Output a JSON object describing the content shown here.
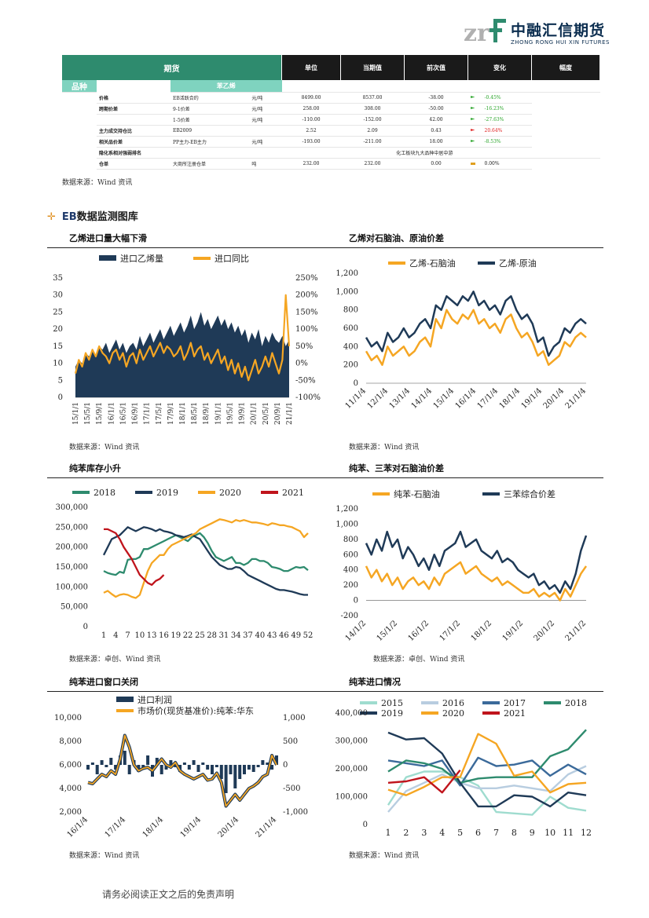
{
  "logo": {
    "mark": "zrf",
    "name": "中融汇信期货",
    "english": "ZHONG RONG HUI XIN FUTURES"
  },
  "table": {
    "headers": {
      "futures": "期货",
      "unit": "单位",
      "current": "当期值",
      "previous": "前次值",
      "change": "变化",
      "pct": "幅度"
    },
    "subheader": "苯乙烯",
    "category": "品种",
    "rows": [
      {
        "label": "价格",
        "item": "EB活跃合约",
        "unit": "元/吨",
        "current": "8499.00",
        "previous": "8537.00",
        "change": "-38.00",
        "flag": "g",
        "pct": "-0.45%",
        "dir": "up"
      },
      {
        "label": "跨期价差",
        "item": "9-1价差",
        "unit": "元/吨",
        "current": "258.00",
        "previous": "308.00",
        "change": "-50.00",
        "flag": "g",
        "pct": "-16.23%",
        "dir": "up"
      },
      {
        "label": "",
        "item": "1-5价差",
        "unit": "元/吨",
        "current": "-110.00",
        "previous": "-152.00",
        "change": "42.00",
        "flag": "g",
        "pct": "-27.63%",
        "dir": "up"
      },
      {
        "label": "主力成交持仓比",
        "item": "EB2009",
        "unit": "",
        "current": "2.52",
        "previous": "2.09",
        "change": "0.43",
        "flag": "r",
        "pct": "20.64%",
        "dir": "down"
      },
      {
        "label": "相关品价差",
        "item": "PP主力-EB主力",
        "unit": "元/吨",
        "current": "-193.00",
        "previous": "-211.00",
        "change": "18.00",
        "flag": "g",
        "pct": "-8.53%",
        "dir": "up"
      },
      {
        "label": "隐化系相对强弱排名",
        "item": "",
        "unit": "",
        "merged": "化工板块九大品种中居中游"
      },
      {
        "label": "仓单",
        "item": "大商所注册仓单",
        "unit": "吨",
        "current": "232.00",
        "previous": "232.00",
        "change": "0.00",
        "flag": "y",
        "pct": "0.00%",
        "dir": "flat"
      }
    ]
  },
  "source_wind": "数据来源：Wind 资讯",
  "source_zhuochuang": "数据来源：卓创、Wind 资讯",
  "section": {
    "prefix": "EB",
    "title": "数据监测图库"
  },
  "footer": "请务必阅读正文之后的免责声明",
  "colors": {
    "navy": "#1f3a57",
    "orange": "#f5a623",
    "green": "#2e8b6e",
    "red": "#c0141c",
    "teal_light": "#7fd3bf"
  },
  "chart_data": [
    {
      "id": "c1",
      "title": "乙烯进口量大幅下滑",
      "type": "area",
      "series": [
        {
          "name": "进口乙烯量",
          "color": "#1f3a57"
        },
        {
          "name": "进口同比",
          "color": "#f5a623"
        }
      ],
      "y_left": {
        "min": 0,
        "max": 35,
        "ticks": [
          "0",
          "5",
          "10",
          "15",
          "20",
          "25",
          "30",
          "35"
        ]
      },
      "y_right": {
        "min": -100,
        "max": 250,
        "ticks": [
          "-100%",
          "-50%",
          "0%",
          "50%",
          "100%",
          "150%",
          "200%",
          "250%"
        ]
      },
      "x_ticks": [
        "15/1/1",
        "15/5/1",
        "15/9/1",
        "16/1/1",
        "16/5/1",
        "16/9/1",
        "17/1/1",
        "17/5/1",
        "17/9/1",
        "18/1/1",
        "18/5/1",
        "18/9/1",
        "19/1/1",
        "19/5/1",
        "19/9/1",
        "20/1/1",
        "20/5/1",
        "20/9/1",
        "21/1/1"
      ],
      "import_volume": [
        9,
        11,
        10,
        13,
        12,
        14,
        12,
        15,
        14,
        16,
        13,
        15,
        17,
        14,
        16,
        13,
        15,
        16,
        14,
        18,
        15,
        17,
        19,
        16,
        18,
        20,
        17,
        19,
        21,
        18,
        20,
        22,
        19,
        21,
        24,
        20,
        22,
        25,
        21,
        23,
        20,
        22,
        24,
        21,
        23,
        20,
        22,
        19,
        21,
        18,
        20,
        16,
        19,
        17,
        20,
        15,
        18,
        16,
        19,
        17,
        16,
        18,
        15,
        17
      ],
      "yoy_pct": [
        -30,
        10,
        -10,
        30,
        10,
        40,
        20,
        50,
        30,
        20,
        0,
        30,
        40,
        10,
        30,
        -10,
        20,
        30,
        0,
        40,
        10,
        30,
        50,
        20,
        40,
        60,
        30,
        50,
        40,
        20,
        30,
        50,
        10,
        30,
        60,
        20,
        40,
        50,
        10,
        30,
        0,
        20,
        40,
        0,
        20,
        -20,
        10,
        -30,
        0,
        -40,
        -10,
        -50,
        -20,
        10,
        -30,
        -10,
        20,
        -10,
        30,
        0,
        -30,
        10,
        200,
        50
      ]
    },
    {
      "id": "c2",
      "title": "乙烯对石脑油、原油价差",
      "type": "line",
      "series": [
        {
          "name": "乙烯-石脑油",
          "color": "#f5a623"
        },
        {
          "name": "乙烯-原油",
          "color": "#1f3a57"
        }
      ],
      "y": {
        "min": 0,
        "max": 1200,
        "ticks": [
          "0",
          "200",
          "400",
          "600",
          "800",
          "1,000",
          "1,200"
        ]
      },
      "x_ticks": [
        "11/1/4",
        "12/1/4",
        "13/1/4",
        "14/1/4",
        "15/1/4",
        "16/1/4",
        "17/1/4",
        "18/1/4",
        "19/1/4",
        "20/1/4",
        "21/1/4"
      ],
      "naphtha": [
        350,
        250,
        300,
        200,
        400,
        300,
        350,
        400,
        300,
        350,
        450,
        500,
        400,
        700,
        600,
        800,
        700,
        650,
        750,
        700,
        800,
        650,
        700,
        600,
        650,
        550,
        700,
        750,
        600,
        500,
        550,
        450,
        300,
        350,
        200,
        250,
        300,
        450,
        400,
        500,
        550,
        500
      ],
      "crude": [
        500,
        400,
        450,
        350,
        550,
        450,
        500,
        600,
        500,
        550,
        650,
        700,
        600,
        850,
        800,
        950,
        900,
        850,
        950,
        900,
        1000,
        850,
        900,
        800,
        850,
        750,
        900,
        950,
        800,
        700,
        750,
        650,
        450,
        500,
        300,
        400,
        450,
        600,
        550,
        650,
        700,
        650
      ]
    },
    {
      "id": "c3",
      "title": "纯苯库存小升",
      "type": "line",
      "series": [
        {
          "name": "2018",
          "color": "#2e8b6e"
        },
        {
          "name": "2019",
          "color": "#1f3a57"
        },
        {
          "name": "2020",
          "color": "#f5a623"
        },
        {
          "name": "2021",
          "color": "#c0141c"
        }
      ],
      "y": {
        "min": 0,
        "max": 300000,
        "ticks": [
          "0",
          "50,000",
          "100,000",
          "150,000",
          "200,000",
          "250,000",
          "300,000"
        ]
      },
      "x_ticks": [
        "1",
        "4",
        "7",
        "10",
        "13",
        "16",
        "19",
        "22",
        "25",
        "28",
        "31",
        "34",
        "37",
        "40",
        "43",
        "46",
        "49",
        "52"
      ],
      "s2018": [
        140000,
        135000,
        132000,
        130000,
        138000,
        135000,
        168000,
        170000,
        170000,
        175000,
        195000,
        195000,
        200000,
        205000,
        210000,
        215000,
        220000,
        225000,
        230000,
        225000,
        220000,
        215000,
        225000,
        230000,
        235000,
        225000,
        210000,
        190000,
        175000,
        170000,
        165000,
        170000,
        175000,
        160000,
        160000,
        155000,
        160000,
        170000,
        170000,
        165000,
        165000,
        160000,
        150000,
        148000,
        145000,
        140000,
        140000,
        145000,
        150000,
        148000,
        150000,
        142000
      ],
      "s2019": [
        180000,
        200000,
        220000,
        225000,
        230000,
        240000,
        250000,
        245000,
        240000,
        245000,
        250000,
        248000,
        245000,
        240000,
        245000,
        240000,
        238000,
        235000,
        230000,
        228000,
        225000,
        228000,
        232000,
        225000,
        220000,
        205000,
        190000,
        175000,
        165000,
        155000,
        150000,
        145000,
        145000,
        150000,
        148000,
        140000,
        130000,
        125000,
        120000,
        115000,
        110000,
        105000,
        100000,
        95000,
        92000,
        92000,
        90000,
        88000,
        85000,
        82000,
        80000,
        80000
      ],
      "s2020": [
        85000,
        90000,
        82000,
        75000,
        80000,
        82000,
        80000,
        75000,
        72000,
        80000,
        110000,
        140000,
        160000,
        170000,
        180000,
        180000,
        195000,
        205000,
        210000,
        215000,
        220000,
        225000,
        230000,
        235000,
        245000,
        250000,
        255000,
        260000,
        265000,
        270000,
        268000,
        265000,
        262000,
        268000,
        265000,
        268000,
        265000,
        262000,
        262000,
        260000,
        258000,
        255000,
        260000,
        258000,
        255000,
        255000,
        252000,
        250000,
        245000,
        240000,
        225000,
        235000
      ],
      "s2021": [
        245000,
        245000,
        240000,
        235000,
        220000,
        200000,
        185000,
        170000,
        150000,
        130000,
        120000,
        110000,
        105000,
        115000,
        120000,
        130000
      ]
    },
    {
      "id": "c4",
      "title": "纯苯、三苯对石脑油价差",
      "type": "line",
      "series": [
        {
          "name": "纯苯-石脑油",
          "color": "#f5a623"
        },
        {
          "name": "三苯综合价差",
          "color": "#1f3a57"
        }
      ],
      "y": {
        "min": -200,
        "max": 1200,
        "ticks": [
          "-200",
          "0",
          "200",
          "400",
          "600",
          "800",
          "1,000",
          "1,200"
        ]
      },
      "x_ticks": [
        "14/1/2",
        "15/1/2",
        "16/1/2",
        "17/1/2",
        "18/1/2",
        "19/1/2",
        "20/1/2",
        "21/1/2"
      ],
      "benzene_naphtha": [
        450,
        300,
        400,
        250,
        350,
        200,
        300,
        150,
        250,
        300,
        200,
        250,
        150,
        300,
        200,
        350,
        400,
        450,
        500,
        350,
        400,
        450,
        350,
        300,
        250,
        300,
        200,
        250,
        200,
        150,
        100,
        100,
        150,
        50,
        100,
        50,
        100,
        0,
        150,
        50,
        200,
        350,
        450
      ],
      "three_benzene": [
        750,
        600,
        800,
        650,
        900,
        700,
        800,
        550,
        700,
        600,
        450,
        550,
        400,
        600,
        450,
        650,
        700,
        750,
        900,
        700,
        750,
        800,
        650,
        600,
        550,
        650,
        500,
        550,
        500,
        400,
        350,
        300,
        350,
        200,
        250,
        150,
        200,
        100,
        250,
        150,
        350,
        650,
        850
      ]
    },
    {
      "id": "c5",
      "title": "纯苯进口窗口关闭",
      "type": "bar+line",
      "series": [
        {
          "name": "进口利润",
          "color": "#1f3a57"
        },
        {
          "name": "市场价(现货基准价):纯苯:华东",
          "color": "#f5a623"
        }
      ],
      "y_left": {
        "min": 2000,
        "max": 10000,
        "ticks": [
          "2,000",
          "4,000",
          "6,000",
          "8,000",
          "10,000"
        ]
      },
      "y_right": {
        "min": -1000,
        "max": 1000,
        "ticks": [
          "-1,000",
          "-500",
          "0",
          "500",
          "1,000"
        ]
      },
      "x_ticks": [
        "16/1/4",
        "17/1/4",
        "18/1/4",
        "19/1/4",
        "20/1/4",
        "21/1/4"
      ],
      "price": [
        4500,
        4400,
        4800,
        5200,
        5000,
        5500,
        5200,
        6500,
        8500,
        7500,
        6000,
        5500,
        5700,
        5800,
        5500,
        6000,
        6500,
        6000,
        5800,
        6200,
        5500,
        5200,
        5000,
        4800,
        5000,
        5200,
        4700,
        4800,
        5300,
        4500,
        2500,
        3000,
        3500,
        3000,
        3500,
        4000,
        4200,
        4500,
        5000,
        5200,
        6800,
        6000
      ],
      "profit": [
        -100,
        50,
        -200,
        100,
        -50,
        150,
        -100,
        200,
        300,
        -200,
        100,
        -150,
        -100,
        200,
        -250,
        150,
        -200,
        -100,
        100,
        -50,
        -150,
        50,
        -100,
        100,
        -150,
        50,
        -100,
        -200,
        -50,
        -300,
        -600,
        -200,
        -500,
        -300,
        -200,
        -100,
        -150,
        -50,
        100,
        50,
        -100,
        200
      ]
    },
    {
      "id": "c6",
      "title": "纯苯进口情况",
      "type": "line",
      "series": [
        {
          "name": "2015",
          "color": "#9fdccf"
        },
        {
          "name": "2016",
          "color": "#b8cde0"
        },
        {
          "name": "2017",
          "color": "#3b6a9a"
        },
        {
          "name": "2018",
          "color": "#2e8b6e"
        },
        {
          "name": "2019",
          "color": "#1f3a57"
        },
        {
          "name": "2020",
          "color": "#f5a623"
        },
        {
          "name": "2021",
          "color": "#c0141c"
        }
      ],
      "y": {
        "min": 0,
        "max": 400000,
        "ticks": [
          "0",
          "100,000",
          "200,000",
          "300,000",
          "400,000"
        ]
      },
      "x_ticks": [
        "1",
        "2",
        "3",
        "4",
        "5",
        "6",
        "7",
        "8",
        "9",
        "10",
        "11",
        "12"
      ],
      "s2015": [
        70000,
        170000,
        190000,
        190000,
        170000,
        140000,
        45000,
        40000,
        35000,
        100000,
        60000,
        50000
      ],
      "s2016": [
        45000,
        120000,
        150000,
        180000,
        150000,
        130000,
        130000,
        140000,
        130000,
        120000,
        180000,
        210000
      ],
      "s2017": [
        230000,
        220000,
        210000,
        230000,
        140000,
        240000,
        210000,
        215000,
        230000,
        175000,
        215000,
        180000
      ],
      "s2018": [
        190000,
        230000,
        220000,
        200000,
        150000,
        165000,
        170000,
        170000,
        170000,
        245000,
        270000,
        340000
      ],
      "s2019": [
        330000,
        305000,
        310000,
        255000,
        150000,
        65000,
        65000,
        105000,
        100000,
        65000,
        115000,
        105000
      ],
      "s2020": [
        125000,
        105000,
        135000,
        170000,
        170000,
        325000,
        290000,
        175000,
        190000,
        115000,
        145000,
        150000
      ],
      "s2021": [
        150000,
        155000,
        170000,
        115000,
        195000
      ]
    }
  ]
}
